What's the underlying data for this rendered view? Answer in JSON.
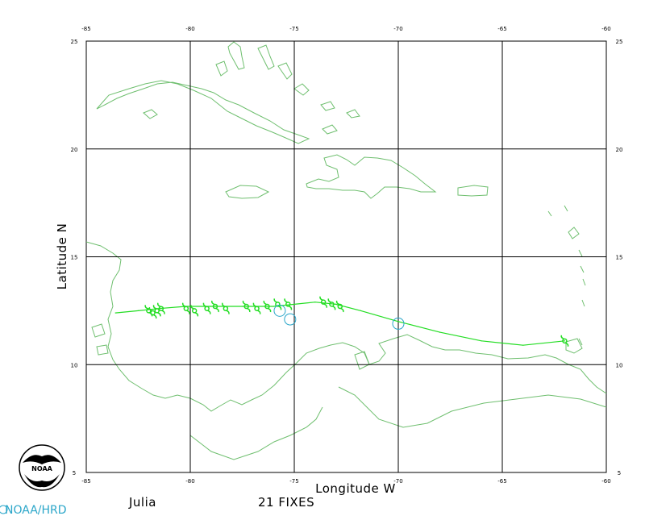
{
  "map": {
    "x_axis": {
      "title": "Longitude  W",
      "ticks": [
        -85,
        -80,
        -75,
        -70,
        -65,
        -60
      ],
      "tick_labels": [
        "-85",
        "-80",
        "-75",
        "-70",
        "-65",
        "-60"
      ]
    },
    "y_axis": {
      "title": "Latitude  N",
      "ticks": [
        25,
        20,
        15,
        10,
        5
      ],
      "tick_labels": [
        "25",
        "20",
        "15",
        "10",
        "5"
      ]
    },
    "storm_name": "Julia",
    "fix_count_label": "21 FIXES",
    "agency_label": "NOAA/HRD",
    "logo_text": "NOAA",
    "colors": {
      "coastline": "#6fbf6f",
      "track": "#22dd22",
      "circles": "#2aa6c9",
      "grid": "#000000"
    }
  },
  "chart_data": {
    "type": "line",
    "title": "",
    "xlabel": "Longitude  W",
    "ylabel": "Latitude  N",
    "xlim": [
      -85,
      -60
    ],
    "ylim": [
      5,
      25
    ],
    "grid": true,
    "series": [
      {
        "x": [
          -83.6,
          -82.5,
          -81.5,
          -80.2,
          -79.0,
          -77.5,
          -76.0,
          -75.0,
          -74.0,
          -73.0,
          -71.8,
          -70.0,
          -68.0,
          -66.0,
          -64.0,
          -62.0
        ],
        "y": [
          12.4,
          12.5,
          12.6,
          12.7,
          12.7,
          12.7,
          12.7,
          12.8,
          12.9,
          12.8,
          12.5,
          12.0,
          11.5,
          11.1,
          10.9,
          11.1
        ]
      }
    ],
    "fix_markers": {
      "x": [
        -82.0,
        -81.8,
        -81.6,
        -81.4,
        -80.2,
        -79.8,
        -79.2,
        -78.8,
        -78.3,
        -77.3,
        -76.8,
        -76.3,
        -75.8,
        -75.3,
        -73.6,
        -73.2,
        -72.8,
        -62.0
      ],
      "y": [
        12.5,
        12.4,
        12.5,
        12.6,
        12.6,
        12.5,
        12.6,
        12.7,
        12.6,
        12.7,
        12.6,
        12.7,
        12.8,
        12.8,
        12.9,
        12.8,
        12.7,
        11.1
      ]
    },
    "circle_markers": {
      "x": [
        -75.7,
        -75.2,
        -70.0
      ],
      "y": [
        12.5,
        12.1,
        11.9
      ]
    }
  }
}
